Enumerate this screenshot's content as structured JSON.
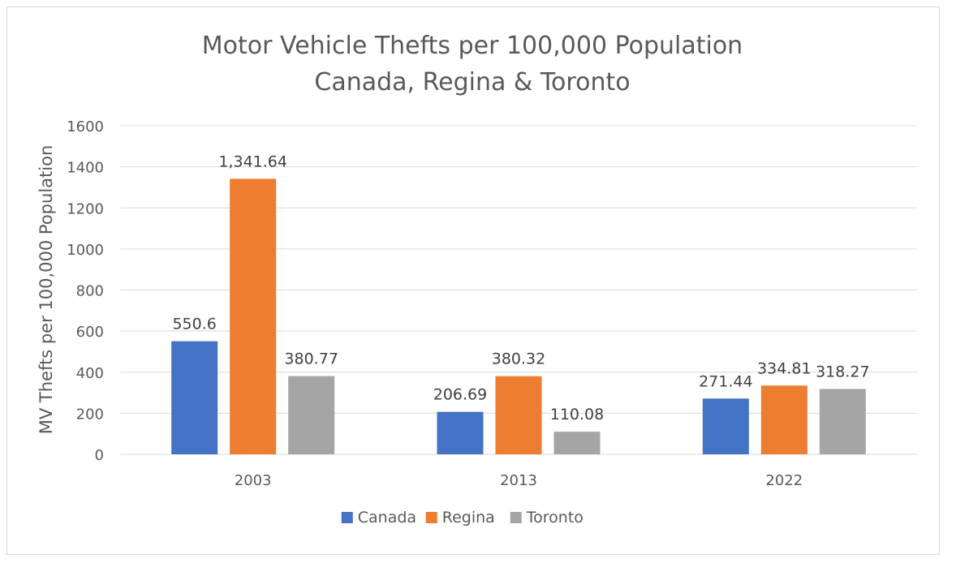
{
  "chart_data": {
    "type": "bar",
    "title": "Motor Vehicle Thefts per 100,000 Population",
    "subtitle": "Canada, Regina & Toronto",
    "xlabel": "",
    "ylabel": "MV Thefts per 100,000 Population",
    "categories": [
      "2003",
      "2013",
      "2022"
    ],
    "series": [
      {
        "name": "Canada",
        "color": "#4472c4",
        "values": [
          550.6,
          206.69,
          271.44
        ],
        "labels": [
          "550.6",
          "206.69",
          "271.44"
        ]
      },
      {
        "name": "Regina",
        "color": "#ed7d31",
        "values": [
          1341.64,
          380.32,
          334.81
        ],
        "labels": [
          "1,341.64",
          "380.32",
          "334.81"
        ]
      },
      {
        "name": "Toronto",
        "color": "#a5a5a5",
        "values": [
          380.77,
          110.08,
          318.27
        ],
        "labels": [
          "380.77",
          "110.08",
          "318.27"
        ]
      }
    ],
    "ylim": [
      0,
      1600
    ],
    "yticks": [
      "0",
      "200",
      "400",
      "600",
      "800",
      "1000",
      "1200",
      "1400",
      "1600"
    ],
    "grid": true,
    "legend_position": "bottom"
  }
}
